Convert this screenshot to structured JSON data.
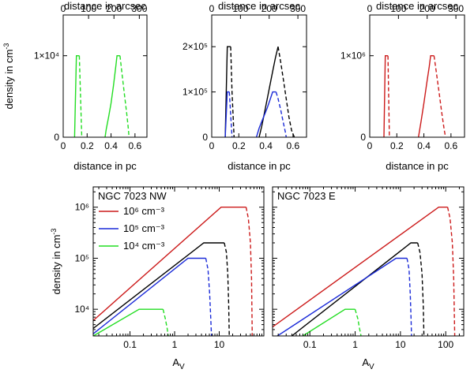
{
  "chart_data": [
    {
      "type": "line",
      "id": "top-left",
      "xlabel": "distance in pc",
      "x2label": "distance in arcsec",
      "ylabel": "density in cm-3",
      "xlim": [
        0,
        0.7
      ],
      "ylim": [
        0,
        15000
      ],
      "xticks": [
        {
          "v": 0,
          "t": "0"
        },
        {
          "v": 0.2,
          "t": "0.2"
        },
        {
          "v": 0.4,
          "t": "0.4"
        },
        {
          "v": 0.6,
          "t": "0.6"
        }
      ],
      "x2ticks": [
        {
          "v": 0,
          "t": "0"
        },
        {
          "v": 100,
          "t": "100"
        },
        {
          "v": 200,
          "t": "200"
        },
        {
          "v": 300,
          "t": "300"
        }
      ],
      "x2lim": [
        0,
        330
      ],
      "yticks": [
        {
          "v": 0,
          "t": "0"
        },
        {
          "v": 10000,
          "t": "1×10⁴"
        }
      ],
      "series": [
        {
          "name": "10^4 cm^-3",
          "color": "#22dd22",
          "shape": "peak",
          "peak": 10000,
          "solid": [
            [
              0.095,
              0
            ],
            [
              0.11,
              10000
            ],
            [
              0.135,
              10000
            ]
          ],
          "dashed": [
            [
              0.135,
              10000
            ],
            [
              0.155,
              0
            ]
          ]
        },
        {
          "name": "10^4 cm^-3",
          "color": "#22dd22",
          "shape": "peak",
          "peak": 10000,
          "solid": [
            [
              0.35,
              0
            ],
            [
              0.36,
              1000
            ],
            [
              0.38,
              2500
            ],
            [
              0.4,
              4200
            ],
            [
              0.42,
              6300
            ],
            [
              0.44,
              8700
            ],
            [
              0.45,
              10000
            ],
            [
              0.475,
              10000
            ]
          ],
          "dashed": [
            [
              0.475,
              10000
            ],
            [
              0.49,
              8000
            ],
            [
              0.51,
              5500
            ],
            [
              0.53,
              3000
            ],
            [
              0.545,
              1000
            ],
            [
              0.55,
              0
            ]
          ]
        }
      ]
    },
    {
      "type": "line",
      "id": "top-middle",
      "xlabel": "distance in pc",
      "x2label": "distance in arcsec",
      "ylabel": "",
      "xlim": [
        0,
        0.7
      ],
      "ylim": [
        0,
        270000
      ],
      "xticks": [
        {
          "v": 0,
          "t": "0"
        },
        {
          "v": 0.2,
          "t": "0.2"
        },
        {
          "v": 0.4,
          "t": "0.4"
        },
        {
          "v": 0.6,
          "t": "0.6"
        }
      ],
      "x2ticks": [
        {
          "v": 0,
          "t": "0"
        },
        {
          "v": 100,
          "t": "100"
        },
        {
          "v": 200,
          "t": "200"
        },
        {
          "v": 300,
          "t": "300"
        }
      ],
      "x2lim": [
        0,
        330
      ],
      "yticks": [
        {
          "v": 0,
          "t": "0"
        },
        {
          "v": 100000,
          "t": "1×10⁵"
        },
        {
          "v": 200000,
          "t": "2×10⁵"
        }
      ],
      "series": [
        {
          "name": "2×10^5",
          "color": "#000000",
          "solid": [
            [
              0.1,
              0
            ],
            [
              0.115,
              200000
            ],
            [
              0.14,
              200000
            ]
          ],
          "dashed": [
            [
              0.14,
              200000
            ],
            [
              0.15,
              100000
            ],
            [
              0.165,
              0
            ]
          ]
        },
        {
          "name": "2×10^5",
          "color": "#000000",
          "solid": [
            [
              0.35,
              0
            ],
            [
              0.37,
              25000
            ],
            [
              0.39,
              55000
            ],
            [
              0.41,
              85000
            ],
            [
              0.43,
              115000
            ],
            [
              0.45,
              145000
            ],
            [
              0.47,
              175000
            ],
            [
              0.49,
              200000
            ]
          ],
          "dashed": [
            [
              0.49,
              200000
            ],
            [
              0.51,
              165000
            ],
            [
              0.53,
              125000
            ],
            [
              0.55,
              85000
            ],
            [
              0.57,
              45000
            ],
            [
              0.59,
              15000
            ],
            [
              0.61,
              0
            ]
          ]
        },
        {
          "name": "10^5",
          "color": "#1a2ad8",
          "solid": [
            [
              0.1,
              0
            ],
            [
              0.115,
              100000
            ],
            [
              0.13,
              100000
            ]
          ],
          "dashed": [
            [
              0.13,
              100000
            ],
            [
              0.14,
              50000
            ],
            [
              0.15,
              0
            ]
          ]
        },
        {
          "name": "10^5",
          "color": "#1a2ad8",
          "solid": [
            [
              0.33,
              0
            ],
            [
              0.35,
              20000
            ],
            [
              0.37,
              35000
            ],
            [
              0.39,
              50000
            ],
            [
              0.41,
              65000
            ],
            [
              0.43,
              82000
            ],
            [
              0.45,
              100000
            ],
            [
              0.475,
              100000
            ]
          ],
          "dashed": [
            [
              0.475,
              100000
            ],
            [
              0.49,
              85000
            ],
            [
              0.51,
              60000
            ],
            [
              0.53,
              30000
            ],
            [
              0.545,
              10000
            ],
            [
              0.55,
              0
            ]
          ]
        }
      ]
    },
    {
      "type": "line",
      "id": "top-right",
      "xlabel": "distance in pc",
      "x2label": "distance in arcsec",
      "ylabel": "",
      "xlim": [
        0,
        0.7
      ],
      "ylim": [
        0,
        1500000
      ],
      "xticks": [
        {
          "v": 0,
          "t": "0"
        },
        {
          "v": 0.2,
          "t": "0.2"
        },
        {
          "v": 0.4,
          "t": "0.4"
        },
        {
          "v": 0.6,
          "t": "0.6"
        }
      ],
      "x2ticks": [
        {
          "v": 0,
          "t": "0"
        },
        {
          "v": 100,
          "t": "100"
        },
        {
          "v": 200,
          "t": "200"
        },
        {
          "v": 300,
          "t": "300"
        }
      ],
      "x2lim": [
        0,
        330
      ],
      "yticks": [
        {
          "v": 0,
          "t": "0"
        },
        {
          "v": 1000000,
          "t": "1×10⁶"
        }
      ],
      "series": [
        {
          "name": "10^6",
          "color": "#cc1a1a",
          "solid": [
            [
              0.105,
              0
            ],
            [
              0.115,
              1000000
            ],
            [
              0.135,
              1000000
            ]
          ],
          "dashed": [
            [
              0.135,
              1000000
            ],
            [
              0.145,
              0
            ]
          ]
        },
        {
          "name": "10^6",
          "color": "#cc1a1a",
          "solid": [
            [
              0.36,
              0
            ],
            [
              0.38,
              200000
            ],
            [
              0.4,
              420000
            ],
            [
              0.42,
              650000
            ],
            [
              0.44,
              870000
            ],
            [
              0.45,
              1000000
            ],
            [
              0.475,
              1000000
            ]
          ],
          "dashed": [
            [
              0.475,
              1000000
            ],
            [
              0.49,
              820000
            ],
            [
              0.51,
              580000
            ],
            [
              0.53,
              320000
            ],
            [
              0.55,
              90000
            ],
            [
              0.56,
              0
            ]
          ]
        }
      ]
    },
    {
      "type": "line",
      "id": "bottom-left",
      "scale": "log",
      "title": "NGC 7023 NW",
      "xlabel": "A_V",
      "ylabel": "density in cm-3",
      "xlim": [
        0.015,
        100
      ],
      "ylim": [
        3000,
        2500000
      ],
      "xticks": [
        {
          "v": 0.1,
          "t": "0.1"
        },
        {
          "v": 1,
          "t": "1"
        },
        {
          "v": 10,
          "t": "10"
        }
      ],
      "yticks": [
        {
          "v": 10000,
          "t": "10⁴"
        },
        {
          "v": 100000,
          "t": "10⁵"
        },
        {
          "v": 1000000,
          "t": "10⁶"
        }
      ],
      "legend": [
        {
          "label": "10⁶ cm⁻³",
          "color": "#cc1a1a"
        },
        {
          "label": "10⁵ cm⁻³",
          "color": "#1a2ad8"
        },
        {
          "label": "10⁴ cm⁻³",
          "color": "#22dd22"
        }
      ],
      "series": [
        {
          "name": "10^6",
          "color": "#cc1a1a",
          "solid": [
            [
              0.015,
              6000
            ],
            [
              11,
              1000000
            ],
            [
              40,
              1000000
            ]
          ],
          "dashed": [
            [
              40,
              1000000
            ],
            [
              45,
              600000
            ],
            [
              50,
              200000
            ],
            [
              53,
              40000
            ],
            [
              55,
              3000
            ]
          ]
        },
        {
          "name": "2×10^5",
          "color": "#000000",
          "solid": [
            [
              0.015,
              4200
            ],
            [
              4.5,
              200000
            ],
            [
              13,
              200000
            ]
          ],
          "dashed": [
            [
              13,
              200000
            ],
            [
              14.5,
              130000
            ],
            [
              15.5,
              50000
            ],
            [
              16.3,
              12000
            ],
            [
              16.8,
              3000
            ]
          ]
        },
        {
          "name": "10^5",
          "color": "#1a2ad8",
          "solid": [
            [
              0.015,
              3300
            ],
            [
              2.0,
              100000
            ],
            [
              5.0,
              100000
            ]
          ],
          "dashed": [
            [
              5.0,
              100000
            ],
            [
              5.6,
              60000
            ],
            [
              6.1,
              20000
            ],
            [
              6.5,
              6000
            ],
            [
              6.7,
              3000
            ]
          ]
        },
        {
          "name": "10^4",
          "color": "#22dd22",
          "solid": [
            [
              0.015,
              3000
            ],
            [
              0.16,
              10000
            ],
            [
              0.55,
              10000
            ]
          ],
          "dashed": [
            [
              0.55,
              10000
            ],
            [
              0.62,
              6500
            ],
            [
              0.68,
              4200
            ],
            [
              0.72,
              3000
            ]
          ]
        }
      ]
    },
    {
      "type": "line",
      "id": "bottom-right",
      "scale": "log",
      "title": "NGC 7023 E",
      "xlabel": "A_V",
      "ylabel": "",
      "xlim": [
        0.015,
        250
      ],
      "ylim": [
        3000,
        2500000
      ],
      "xticks": [
        {
          "v": 0.1,
          "t": "0.1"
        },
        {
          "v": 1,
          "t": "1"
        },
        {
          "v": 10,
          "t": "10"
        },
        {
          "v": 100,
          "t": "100"
        }
      ],
      "yticks": [],
      "series": [
        {
          "name": "10^6",
          "color": "#cc1a1a",
          "solid": [
            [
              0.015,
              4500
            ],
            [
              70,
              1000000
            ],
            [
              110,
              1000000
            ]
          ],
          "dashed": [
            [
              110,
              1000000
            ],
            [
              125,
              600000
            ],
            [
              140,
              200000
            ],
            [
              150,
              40000
            ],
            [
              158,
              3000
            ]
          ]
        },
        {
          "name": "2×10^5",
          "color": "#000000",
          "solid": [
            [
              0.04,
              3000
            ],
            [
              17,
              200000
            ],
            [
              24,
              200000
            ]
          ],
          "dashed": [
            [
              24,
              200000
            ],
            [
              27,
              130000
            ],
            [
              30,
              50000
            ],
            [
              32,
              12000
            ],
            [
              33,
              3000
            ]
          ]
        },
        {
          "name": "10^5",
          "color": "#1a2ad8",
          "solid": [
            [
              0.015,
              2600
            ],
            [
              8,
              100000
            ],
            [
              14,
              100000
            ]
          ],
          "dashed": [
            [
              14,
              100000
            ],
            [
              15.5,
              60000
            ],
            [
              16.5,
              20000
            ],
            [
              17.2,
              6000
            ],
            [
              17.6,
              3000
            ]
          ]
        },
        {
          "name": "10^4",
          "color": "#22dd22",
          "solid": [
            [
              0.07,
              3000
            ],
            [
              0.6,
              10000
            ],
            [
              1.0,
              10000
            ]
          ],
          "dashed": [
            [
              1.0,
              10000
            ],
            [
              1.15,
              6500
            ],
            [
              1.25,
              4200
            ],
            [
              1.35,
              3000
            ]
          ]
        }
      ]
    }
  ]
}
